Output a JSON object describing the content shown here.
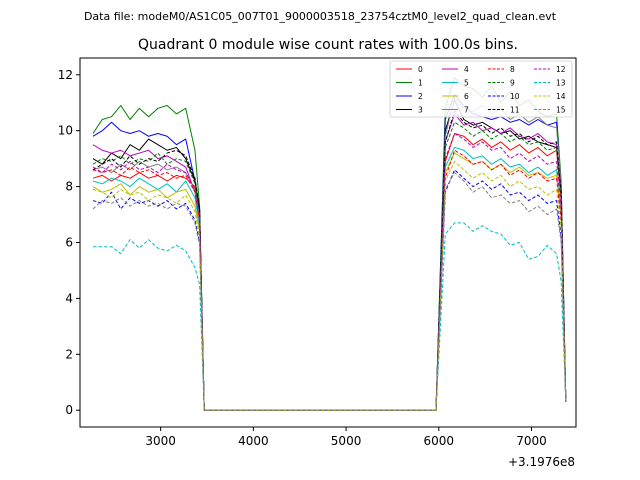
{
  "figure": {
    "suptitle": "Data file: modeM0/AS1C05_007T01_9000003518_23754cztM0_level2_quad_clean.evt"
  },
  "chart_data": {
    "type": "line",
    "title": "Quadrant 0 module wise count rates with 100.0s bins.",
    "xlabel": "",
    "ylabel": "",
    "x_offset_label": "+3.1976e8",
    "xlim": [
      2130,
      7480
    ],
    "ylim": [
      -0.6,
      12.6
    ],
    "x_ticks": [
      3000,
      4000,
      5000,
      6000,
      7000
    ],
    "y_ticks": [
      0,
      2,
      4,
      6,
      8,
      10,
      12
    ],
    "x_tick_labels": [
      "3000",
      "4000",
      "5000",
      "6000",
      "7000"
    ],
    "y_tick_labels": [
      "0",
      "2",
      "4",
      "6",
      "8",
      "10",
      "12"
    ],
    "grid": false,
    "legend_placement": "upper-right",
    "legend_columns": 4,
    "x": [
      2270,
      2370,
      2470,
      2570,
      2670,
      2770,
      2870,
      2970,
      3070,
      3170,
      3270,
      3370,
      3420,
      3470,
      3970,
      4470,
      4970,
      5470,
      5970,
      6070,
      6170,
      6270,
      6370,
      6470,
      6570,
      6670,
      6770,
      6870,
      6970,
      7070,
      7170,
      7270,
      7320,
      7370
    ],
    "series": [
      {
        "name": "0",
        "color": "#ff0000",
        "dashed": false,
        "values": [
          8.3,
          8.4,
          8.2,
          8.4,
          8.3,
          8.5,
          8.3,
          8.4,
          8.2,
          8.4,
          8.3,
          8.0,
          7.0,
          0.0,
          0,
          0,
          0,
          0,
          0,
          8.9,
          9.9,
          9.8,
          9.5,
          9.7,
          9.4,
          9.6,
          9.3,
          9.5,
          9.2,
          9.4,
          9.1,
          9.3,
          7.5,
          0.3
        ]
      },
      {
        "name": "1",
        "color": "#008000",
        "dashed": false,
        "values": [
          9.9,
          10.4,
          10.5,
          10.9,
          10.4,
          10.8,
          10.5,
          10.8,
          10.9,
          10.6,
          10.8,
          9.3,
          7.3,
          0.0,
          0,
          0,
          0,
          0,
          0,
          10.8,
          11.9,
          11.6,
          11.5,
          11.2,
          11.6,
          11.0,
          11.4,
          10.9,
          11.1,
          10.7,
          10.5,
          10.6,
          8.2,
          0.3
        ]
      },
      {
        "name": "2",
        "color": "#0000ff",
        "dashed": false,
        "values": [
          9.8,
          10.0,
          10.3,
          10.0,
          9.9,
          10.0,
          9.8,
          9.9,
          9.8,
          9.5,
          9.7,
          8.2,
          7.0,
          0.0,
          0,
          0,
          0,
          0,
          0,
          10.4,
          11.3,
          10.9,
          10.6,
          10.5,
          10.4,
          10.5,
          10.3,
          10.4,
          10.2,
          10.4,
          10.2,
          10.3,
          8.0,
          0.3
        ]
      },
      {
        "name": "3",
        "color": "#000000",
        "dashed": false,
        "values": [
          9.0,
          8.8,
          9.2,
          9.0,
          9.5,
          9.3,
          9.7,
          9.5,
          9.3,
          9.4,
          9.0,
          8.2,
          7.2,
          0.0,
          0,
          0,
          0,
          0,
          0,
          10.0,
          11.1,
          10.4,
          10.2,
          10.3,
          10.1,
          9.9,
          10.0,
          9.7,
          9.8,
          9.6,
          9.5,
          9.4,
          7.9,
          0.3
        ]
      },
      {
        "name": "4",
        "color": "#bf00bf",
        "dashed": false,
        "values": [
          9.5,
          9.3,
          9.2,
          9.3,
          9.1,
          9.2,
          9.3,
          9.0,
          9.1,
          8.9,
          8.7,
          7.8,
          6.8,
          0.0,
          0,
          0,
          0,
          0,
          0,
          9.6,
          10.6,
          10.2,
          10.3,
          10.0,
          10.1,
          9.9,
          10.1,
          9.8,
          9.7,
          9.9,
          9.6,
          9.5,
          7.7,
          0.3
        ]
      },
      {
        "name": "5",
        "color": "#00bfbf",
        "dashed": false,
        "values": [
          8.2,
          8.1,
          8.3,
          8.2,
          8.0,
          8.3,
          8.1,
          7.9,
          8.1,
          7.8,
          8.2,
          7.6,
          6.5,
          0.0,
          0,
          0,
          0,
          0,
          0,
          8.7,
          9.4,
          9.3,
          9.0,
          9.1,
          8.8,
          9.0,
          8.7,
          8.8,
          8.5,
          8.7,
          8.4,
          8.6,
          7.0,
          0.3
        ]
      },
      {
        "name": "6",
        "color": "#bfbf00",
        "dashed": false,
        "values": [
          8.0,
          7.8,
          7.9,
          8.1,
          7.7,
          8.0,
          7.8,
          7.9,
          7.6,
          7.8,
          7.9,
          7.3,
          6.4,
          0.0,
          0,
          0,
          0,
          0,
          0,
          8.5,
          9.2,
          9.0,
          8.8,
          8.9,
          8.6,
          8.8,
          8.5,
          8.7,
          8.4,
          8.5,
          8.3,
          8.4,
          6.9,
          0.3
        ]
      },
      {
        "name": "7",
        "color": "#808080",
        "dashed": false,
        "values": [
          8.6,
          8.7,
          8.5,
          8.8,
          8.6,
          8.9,
          8.7,
          8.8,
          8.6,
          8.7,
          8.5,
          7.9,
          6.9,
          0.0,
          0,
          0,
          0,
          0,
          0,
          9.8,
          11.2,
          10.8,
          10.7,
          10.9,
          10.6,
          10.8,
          10.4,
          10.6,
          10.3,
          10.5,
          10.2,
          10.1,
          8.1,
          0.3
        ]
      },
      {
        "name": "8",
        "color": "#ff0000",
        "dashed": true,
        "values": [
          8.6,
          8.5,
          8.6,
          8.4,
          8.7,
          8.5,
          8.6,
          8.4,
          8.5,
          8.3,
          8.4,
          7.8,
          6.8,
          0.0,
          0,
          0,
          0,
          0,
          0,
          8.3,
          9.3,
          9.1,
          8.8,
          8.9,
          8.6,
          8.8,
          8.4,
          8.6,
          8.3,
          8.5,
          8.2,
          8.3,
          6.8,
          0.3
        ]
      },
      {
        "name": "9",
        "color": "#008000",
        "dashed": true,
        "values": [
          8.8,
          9.0,
          8.9,
          9.1,
          8.8,
          9.0,
          8.9,
          9.2,
          8.8,
          9.0,
          8.9,
          8.1,
          7.0,
          0.0,
          0,
          0,
          0,
          0,
          0,
          9.4,
          10.3,
          10.1,
          9.8,
          10.0,
          9.7,
          9.9,
          9.6,
          9.8,
          9.5,
          9.6,
          9.3,
          9.4,
          7.6,
          0.3
        ]
      },
      {
        "name": "10",
        "color": "#0000ff",
        "dashed": true,
        "values": [
          7.5,
          7.4,
          7.8,
          7.2,
          7.6,
          7.4,
          7.5,
          7.3,
          7.5,
          7.2,
          7.4,
          6.8,
          6.0,
          0.0,
          0,
          0,
          0,
          0,
          0,
          7.8,
          8.6,
          8.3,
          8.0,
          8.2,
          7.9,
          8.1,
          7.7,
          7.8,
          7.5,
          7.7,
          7.4,
          7.5,
          6.2,
          0.3
        ]
      },
      {
        "name": "11",
        "color": "#000000",
        "dashed": true,
        "values": [
          8.6,
          8.8,
          9.0,
          8.7,
          9.1,
          8.8,
          9.0,
          8.9,
          9.2,
          9.3,
          9.1,
          8.3,
          7.2,
          0.0,
          0,
          0,
          0,
          0,
          0,
          9.6,
          10.7,
          10.3,
          10.1,
          10.2,
          9.9,
          10.1,
          9.8,
          9.9,
          9.6,
          9.8,
          9.5,
          9.6,
          7.8,
          0.3
        ]
      },
      {
        "name": "12",
        "color": "#bf00bf",
        "dashed": true,
        "values": [
          8.7,
          8.5,
          8.8,
          8.6,
          8.9,
          8.6,
          8.7,
          8.5,
          8.8,
          8.6,
          8.5,
          7.9,
          6.9,
          0.0,
          0,
          0,
          0,
          0,
          0,
          9.0,
          9.9,
          9.7,
          9.4,
          9.6,
          9.3,
          9.4,
          9.0,
          9.2,
          8.9,
          9.1,
          8.8,
          8.9,
          7.2,
          0.3
        ]
      },
      {
        "name": "13",
        "color": "#00bfbf",
        "dashed": true,
        "values": [
          5.85,
          5.85,
          5.85,
          5.6,
          6.1,
          5.8,
          6.1,
          5.8,
          5.7,
          5.9,
          5.7,
          5.1,
          4.5,
          0.0,
          0,
          0,
          0,
          0,
          0,
          6.3,
          6.7,
          6.7,
          6.4,
          6.6,
          6.4,
          6.3,
          5.9,
          6.0,
          5.4,
          5.5,
          5.9,
          5.6,
          4.6,
          0.3
        ]
      },
      {
        "name": "14",
        "color": "#bfbf00",
        "dashed": true,
        "values": [
          7.9,
          7.8,
          7.6,
          7.9,
          7.7,
          7.8,
          7.5,
          7.7,
          7.6,
          7.4,
          7.7,
          7.1,
          6.2,
          0.0,
          0,
          0,
          0,
          0,
          0,
          8.2,
          8.9,
          8.6,
          8.3,
          8.5,
          8.2,
          8.4,
          8.0,
          8.2,
          7.9,
          8.0,
          7.7,
          7.9,
          6.5,
          0.3
        ]
      },
      {
        "name": "15",
        "color": "#808080",
        "dashed": true,
        "values": [
          7.2,
          7.5,
          7.4,
          7.6,
          7.3,
          7.5,
          7.3,
          7.4,
          7.2,
          7.4,
          7.3,
          6.7,
          5.9,
          0.0,
          0,
          0,
          0,
          0,
          0,
          7.9,
          8.5,
          8.2,
          7.8,
          8.0,
          7.6,
          7.7,
          7.4,
          7.5,
          7.1,
          7.3,
          7.0,
          7.2,
          6.0,
          0.3
        ]
      }
    ]
  }
}
